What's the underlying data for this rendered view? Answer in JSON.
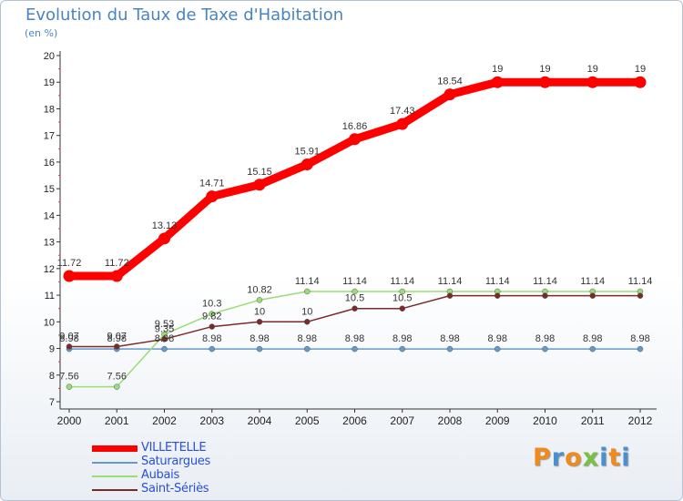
{
  "title": "Evolution du Taux de Taxe d'Habitation",
  "subtitle": "(en %)",
  "chart_data": {
    "type": "line",
    "x": [
      "2000",
      "2001",
      "2002",
      "2003",
      "2004",
      "2005",
      "2006",
      "2007",
      "2008",
      "2009",
      "2010",
      "2011",
      "2012"
    ],
    "y_ticks": [
      "7",
      "8",
      "9",
      "10",
      "11",
      "12",
      "13",
      "14",
      "15",
      "16",
      "17",
      "18",
      "19",
      "20"
    ],
    "ylim": [
      7,
      20
    ],
    "grid": false,
    "legend_position": "bottom-left",
    "series": [
      {
        "name": "VILLETELLE",
        "color": "#ff0000",
        "style": "thick",
        "values": [
          11.72,
          11.72,
          13.13,
          14.71,
          15.15,
          15.91,
          16.86,
          17.43,
          18.54,
          19,
          19,
          19,
          19
        ],
        "labels": [
          "11.72",
          "11.72",
          "13.13",
          "14.71",
          "15.15",
          "15.91",
          "16.86",
          "17.43",
          "18.54",
          "19",
          "19",
          "19",
          "19"
        ]
      },
      {
        "name": "Saturargues",
        "color": "#6699cc",
        "style": "thin",
        "values": [
          8.98,
          8.98,
          8.98,
          8.98,
          8.98,
          8.98,
          8.98,
          8.98,
          8.98,
          8.98,
          8.98,
          8.98,
          8.98
        ],
        "labels": [
          "8.98",
          "8.98",
          "8.98",
          "8.98",
          "8.98",
          "8.98",
          "8.98",
          "8.98",
          "8.98",
          "8.98",
          "8.98",
          "8.98",
          "8.98"
        ]
      },
      {
        "name": "Aubais",
        "color": "#99dd77",
        "style": "thin",
        "values": [
          7.56,
          7.56,
          9.53,
          10.3,
          10.82,
          11.14,
          11.14,
          11.14,
          11.14,
          11.14,
          11.14,
          11.14,
          11.14
        ],
        "labels": [
          "7.56",
          "7.56",
          "9.53",
          "10.3",
          "10.82",
          "11.14",
          "11.14",
          "11.14",
          "11.14",
          "11.14",
          "11.14",
          "11.14",
          "11.14"
        ]
      },
      {
        "name": "Saint-Sériès",
        "color": "#7a2a2a",
        "style": "thin",
        "values": [
          9.07,
          9.07,
          9.35,
          9.82,
          10,
          10,
          10.5,
          10.5,
          10.98,
          10.98,
          10.98,
          10.98,
          10.98
        ],
        "labels": [
          "9.07",
          "9.07",
          "9.35",
          "9.82",
          "10",
          "10",
          "10.5",
          "10.5",
          "",
          "",
          "",
          "",
          ""
        ]
      }
    ]
  },
  "logo": {
    "letters": [
      "P",
      "r",
      "o",
      "x",
      "i",
      "t",
      "i"
    ],
    "colors": [
      "#f08a1a",
      "#4a90d0",
      "#f08a1a",
      "#7ac043",
      "#4a90d0",
      "#f08a1a",
      "#4a90d0"
    ]
  }
}
